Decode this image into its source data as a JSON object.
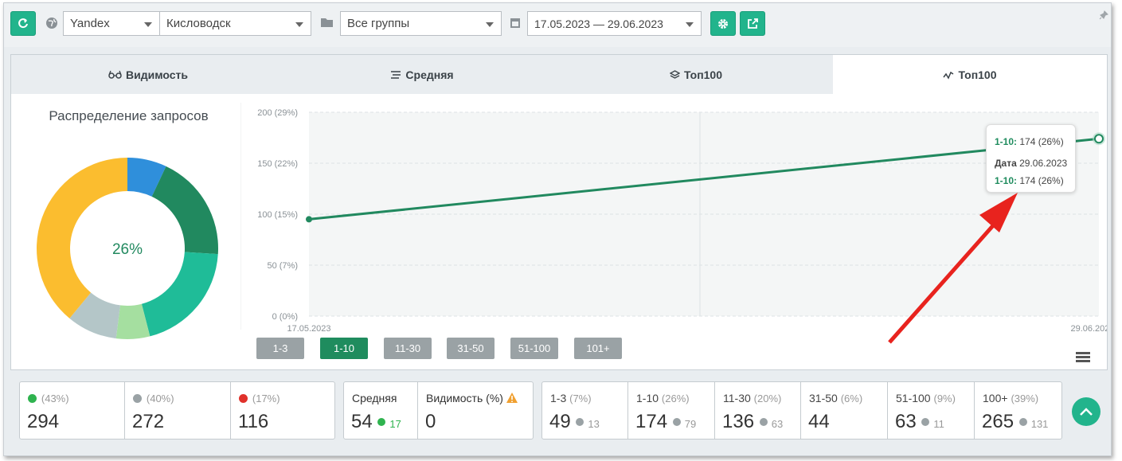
{
  "toolbar": {
    "engine": "Yandex",
    "region": "Кисловодск",
    "group": "Все группы",
    "date_range": "17.05.2023 — 29.06.2023"
  },
  "tabs": [
    {
      "label": "Видимость",
      "icon": "glasses-icon"
    },
    {
      "label": "Средняя",
      "icon": "lines-icon"
    },
    {
      "label": "Топ100",
      "icon": "layers-icon"
    },
    {
      "label": "Топ100",
      "icon": "trend-icon",
      "active": true
    }
  ],
  "donut": {
    "title": "Распределение запросов",
    "center": "26%",
    "segments": [
      {
        "range": "1-3",
        "value": 7,
        "color": "#2f8fdb"
      },
      {
        "range": "1-10",
        "value": 19,
        "color": "#21895f"
      },
      {
        "range": "11-30",
        "value": 20,
        "color": "#1fbc98"
      },
      {
        "range": "31-50",
        "value": 6,
        "color": "#a5dfa0"
      },
      {
        "range": "51-100",
        "value": 9,
        "color": "#b4c6c8"
      },
      {
        "range": "101+",
        "value": 39,
        "color": "#fbbd2f"
      }
    ]
  },
  "chart_data": {
    "type": "line",
    "y_ticks": [
      "200 (29%)",
      "150 (22%)",
      "100 (15%)",
      "50 (7%)",
      "0 (0%)"
    ],
    "ylim": [
      0,
      200
    ],
    "x_labels": [
      "17.05.2023",
      "29.06.2023"
    ],
    "series": [
      {
        "name": "1-10",
        "x": [
          "17.05.2023",
          "29.06.2023"
        ],
        "values": [
          95,
          174
        ],
        "color": "#21895f"
      }
    ]
  },
  "tooltip": {
    "line1_label": "1-10:",
    "line1_value": "174 (26%)",
    "date_label": "Дата",
    "date_value": "29.06.2023",
    "line3_label": "1-10:",
    "line3_value": "174 (26%)"
  },
  "range_buttons": [
    "1-3",
    "1-10",
    "11-30",
    "31-50",
    "51-100",
    "101+"
  ],
  "stats_dynamics": [
    {
      "pct": "(43%)",
      "value": "294",
      "icon": "arrow-up-circle-icon",
      "color": "#2fb34f"
    },
    {
      "pct": "(40%)",
      "value": "272",
      "icon": "minus-circle-icon",
      "color": "#9aa2a5"
    },
    {
      "pct": "(17%)",
      "value": "116",
      "icon": "arrow-down-circle-icon",
      "color": "#e0312b"
    }
  ],
  "stats_avg": {
    "avg_label": "Средняя",
    "avg_value": "54",
    "avg_delta": "17",
    "vis_label": "Видимость (%)",
    "vis_value": "0"
  },
  "stats_ranges": [
    {
      "label": "1-3",
      "pct": "(7%)",
      "value": "49",
      "delta": "13",
      "dir": "up"
    },
    {
      "label": "1-10",
      "pct": "(26%)",
      "value": "174",
      "delta": "79",
      "dir": "up"
    },
    {
      "label": "11-30",
      "pct": "(20%)",
      "value": "136",
      "delta": "63",
      "dir": "up"
    },
    {
      "label": "31-50",
      "pct": "(6%)",
      "value": "44",
      "delta": "",
      "dir": ""
    },
    {
      "label": "51-100",
      "pct": "(9%)",
      "value": "63",
      "delta": "11",
      "dir": "down"
    },
    {
      "label": "100+",
      "pct": "(39%)",
      "value": "265",
      "delta": "131",
      "dir": "down"
    }
  ]
}
